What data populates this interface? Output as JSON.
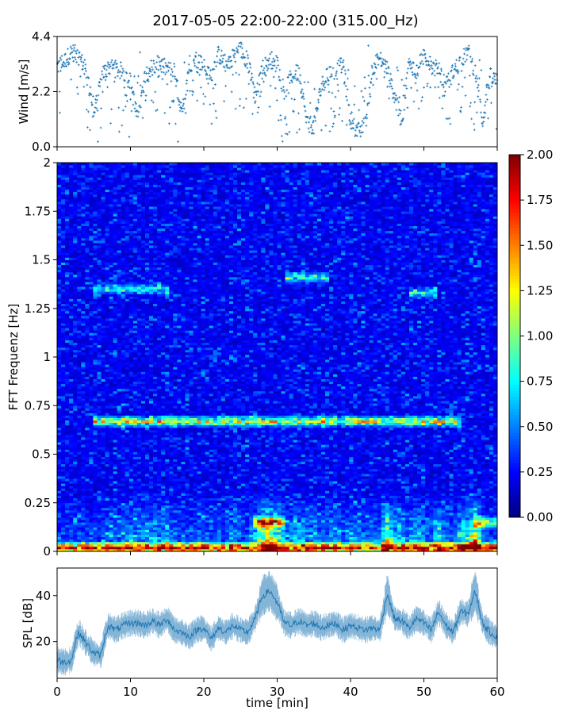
{
  "figure": {
    "title": "2017-05-05 22:00-22:00 (315.00_Hz)"
  },
  "colors": {
    "series": "#1f77b4",
    "axis": "#000000",
    "colormap": "jet"
  },
  "chart_data": [
    {
      "type": "scatter",
      "name": "wind-panel",
      "ylabel": "Wind [m/s]",
      "xlabel": "",
      "xlim": [
        0,
        60
      ],
      "ylim": [
        0,
        4.4
      ],
      "yticks": [
        0,
        2.2,
        4.4
      ],
      "ytick_labels": [
        "0.0",
        "2.2",
        "4.4"
      ],
      "marker": "+",
      "x_min": [
        0,
        1,
        2,
        3,
        4,
        5,
        6,
        7,
        8,
        9,
        10,
        11,
        12,
        13,
        14,
        15,
        16,
        17,
        18,
        19,
        20,
        21,
        22,
        23,
        24,
        25,
        26,
        27,
        28,
        29,
        30,
        31,
        32,
        33,
        34,
        35,
        36,
        37,
        38,
        39,
        40,
        41,
        42,
        43,
        44,
        45,
        46,
        47,
        48,
        49,
        50,
        51,
        52,
        53,
        54,
        55,
        56,
        57,
        58,
        59,
        60
      ],
      "wind_m_s": [
        3.2,
        3.4,
        3.8,
        3.6,
        3.0,
        1.2,
        2.8,
        3.2,
        3.1,
        3.0,
        2.6,
        1.0,
        2.9,
        3.2,
        3.3,
        3.1,
        3.0,
        1.2,
        3.3,
        3.5,
        3.2,
        2.8,
        3.7,
        3.3,
        3.6,
        3.9,
        3.4,
        2.0,
        3.1,
        3.5,
        3.3,
        2.2,
        2.8,
        3.0,
        1.0,
        0.8,
        2.4,
        2.9,
        3.0,
        3.3,
        1.0,
        0.6,
        0.8,
        3.2,
        3.5,
        3.1,
        2.0,
        1.0,
        3.4,
        3.0,
        3.7,
        3.2,
        3.1,
        2.4,
        3.0,
        3.4,
        3.8,
        3.0,
        1.0,
        2.8,
        2.6
      ]
    },
    {
      "type": "heatmap",
      "name": "spectrogram-panel",
      "ylabel": "FFT Frequenz [Hz]",
      "xlabel": "",
      "xlim": [
        0,
        60
      ],
      "ylim": [
        0,
        2
      ],
      "yticks": [
        0,
        0.25,
        0.5,
        0.75,
        1,
        1.25,
        1.5,
        1.75,
        2
      ],
      "ytick_labels": [
        "0",
        "0.25",
        "0.5",
        "0.75",
        "1",
        "1.25",
        "1.5",
        "1.75",
        "2"
      ],
      "colorbar": {
        "range": [
          0,
          2
        ],
        "ticks": [
          0,
          0.25,
          0.5,
          0.75,
          1,
          1.25,
          1.5,
          1.75,
          2
        ],
        "tick_labels": [
          "0.00",
          "0.25",
          "0.50",
          "0.75",
          "1.00",
          "1.25",
          "1.50",
          "1.75",
          "2.00"
        ],
        "colormap": "jet"
      },
      "features": [
        {
          "freq_hz": 0.67,
          "t_from_min": 5,
          "t_to_min": 55,
          "level": 1.2
        },
        {
          "freq_hz": 0.02,
          "t_from_min": 0,
          "t_to_min": 60,
          "level": 1.8
        },
        {
          "freq_hz": 1.35,
          "t_from_min": 5,
          "t_to_min": 15,
          "level": 0.7
        },
        {
          "freq_hz": 1.41,
          "t_from_min": 31,
          "t_to_min": 37,
          "level": 0.8
        },
        {
          "freq_hz": 1.33,
          "t_from_min": 48,
          "t_to_min": 52,
          "level": 0.8
        },
        {
          "freq_hz": 0.15,
          "t_from_min": 27,
          "t_to_min": 31,
          "level": 1.3
        },
        {
          "freq_hz": 0.15,
          "t_from_min": 57,
          "t_to_min": 60,
          "level": 1.0
        }
      ]
    },
    {
      "type": "line",
      "name": "spl-panel",
      "ylabel": "SPL [dB]",
      "xlabel": "time [min]",
      "xlim": [
        0,
        60
      ],
      "ylim": [
        4,
        52
      ],
      "yticks": [
        20,
        40
      ],
      "ytick_labels": [
        "20",
        "40"
      ],
      "xticks": [
        0,
        10,
        20,
        30,
        40,
        50,
        60
      ],
      "xtick_labels": [
        "0",
        "10",
        "20",
        "30",
        "40",
        "50",
        "60"
      ],
      "x_min": [
        0,
        1,
        2,
        2.5,
        3,
        4,
        5,
        6,
        6.5,
        7,
        8,
        9,
        10,
        11,
        12,
        13,
        14,
        15,
        16,
        17,
        18,
        19,
        20,
        21,
        22,
        23,
        24,
        25,
        26,
        27,
        28,
        29,
        30,
        31,
        32,
        33,
        34,
        35,
        36,
        37,
        38,
        39,
        40,
        41,
        42,
        43,
        44,
        45,
        46,
        47,
        48,
        49,
        50,
        51,
        52,
        53,
        54,
        55,
        56,
        57,
        58,
        59,
        60
      ],
      "spl_db": [
        12,
        11,
        12,
        20,
        24,
        19,
        15,
        14,
        22,
        27,
        25,
        27,
        28,
        28,
        27,
        29,
        27,
        30,
        25,
        24,
        22,
        25,
        26,
        21,
        26,
        24,
        27,
        25,
        24,
        30,
        40,
        42,
        37,
        28,
        27,
        29,
        27,
        28,
        26,
        27,
        28,
        25,
        27,
        26,
        25,
        26,
        25,
        41,
        30,
        29,
        26,
        30,
        28,
        25,
        33,
        27,
        24,
        33,
        32,
        42,
        28,
        24,
        22
      ]
    }
  ]
}
